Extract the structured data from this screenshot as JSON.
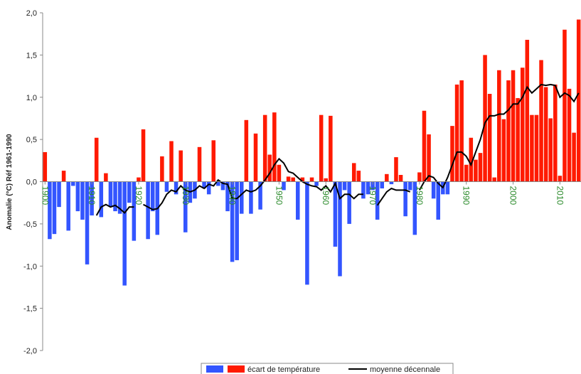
{
  "chart_data": {
    "type": "bar",
    "y_label": "Anomalie (°C) Réf 1961-1990",
    "x": [
      1900,
      1901,
      1902,
      1903,
      1904,
      1905,
      1906,
      1907,
      1908,
      1909,
      1910,
      1911,
      1912,
      1913,
      1914,
      1915,
      1916,
      1917,
      1918,
      1919,
      1920,
      1921,
      1922,
      1923,
      1924,
      1925,
      1926,
      1927,
      1928,
      1929,
      1930,
      1931,
      1932,
      1933,
      1934,
      1935,
      1936,
      1937,
      1938,
      1939,
      1940,
      1941,
      1942,
      1943,
      1944,
      1945,
      1946,
      1947,
      1948,
      1949,
      1950,
      1951,
      1952,
      1953,
      1954,
      1955,
      1956,
      1957,
      1958,
      1959,
      1960,
      1961,
      1962,
      1963,
      1964,
      1965,
      1966,
      1967,
      1968,
      1969,
      1970,
      1971,
      1972,
      1973,
      1974,
      1975,
      1976,
      1977,
      1978,
      1979,
      1980,
      1981,
      1982,
      1983,
      1984,
      1985,
      1986,
      1987,
      1988,
      1989,
      1990,
      1991,
      1992,
      1993,
      1994,
      1995,
      1996,
      1997,
      1998,
      1999,
      2000,
      2001,
      2002,
      2003,
      2004,
      2005,
      2006,
      2007,
      2008,
      2009,
      2010,
      2011,
      2012,
      2013,
      2014
    ],
    "series": [
      {
        "name": "écart de température",
        "color": "#ff1a00",
        "negative_color": "#3355ff",
        "values": [
          0.35,
          -0.68,
          -0.62,
          -0.3,
          0.13,
          -0.58,
          -0.05,
          -0.35,
          -0.45,
          -0.98,
          -0.4,
          0.52,
          -0.42,
          0.1,
          -0.3,
          -0.35,
          -0.38,
          -1.23,
          -0.25,
          -0.7,
          0.05,
          0.62,
          -0.68,
          -0.35,
          -0.63,
          0.3,
          -0.12,
          0.48,
          -0.15,
          0.37,
          -0.6,
          -0.25,
          -0.2,
          0.41,
          -0.08,
          -0.15,
          0.49,
          -0.05,
          -0.1,
          -0.35,
          -0.95,
          -0.93,
          -0.38,
          0.73,
          -0.38,
          0.57,
          -0.33,
          0.79,
          0.32,
          0.82,
          0.2,
          -0.1,
          0.06,
          0.05,
          -0.45,
          0.05,
          -1.22,
          0.05,
          -0.05,
          0.79,
          0.04,
          0.78,
          -0.77,
          -1.12,
          -0.1,
          -0.5,
          0.22,
          0.13,
          -0.2,
          -0.15,
          -0.1,
          -0.45,
          -0.08,
          0.09,
          -0.03,
          0.29,
          0.08,
          -0.41,
          -0.1,
          -0.63,
          0.11,
          0.84,
          0.56,
          -0.2,
          -0.45,
          -0.15,
          -0.15,
          0.66,
          1.15,
          1.2,
          0.2,
          0.52,
          0.26,
          0.34,
          1.5,
          1.04,
          0.05,
          1.32,
          0.74,
          1.2,
          1.32,
          0.99,
          1.35,
          1.68,
          0.79,
          0.79,
          1.44,
          1.12,
          0.75,
          1.15,
          0.07,
          1.8,
          1.1,
          0.58,
          1.92
        ]
      },
      {
        "name": "moyenne décennale",
        "type": "line",
        "color": "#000000",
        "values": [
          null,
          null,
          null,
          null,
          null,
          null,
          null,
          null,
          null,
          null,
          null,
          -0.4,
          -0.3,
          -0.27,
          -0.3,
          -0.28,
          -0.32,
          -0.37,
          -0.3,
          -0.3,
          null,
          -0.27,
          -0.3,
          -0.33,
          -0.32,
          -0.25,
          -0.15,
          -0.1,
          -0.12,
          -0.05,
          -0.1,
          -0.12,
          -0.1,
          -0.05,
          -0.08,
          -0.03,
          -0.05,
          0.02,
          -0.02,
          -0.03,
          -0.2,
          -0.2,
          -0.15,
          -0.1,
          -0.12,
          -0.1,
          -0.05,
          0.02,
          0.1,
          0.2,
          0.27,
          0.22,
          0.12,
          0.1,
          0.05,
          0.0,
          -0.03,
          -0.05,
          -0.06,
          -0.1,
          -0.05,
          -0.12,
          -0.02,
          -0.2,
          -0.15,
          -0.15,
          -0.2,
          -0.15,
          -0.15,
          null,
          null,
          -0.28,
          -0.2,
          -0.12,
          -0.08,
          -0.1,
          -0.1,
          -0.1,
          -0.12,
          null,
          -0.1,
          0.0,
          0.07,
          0.05,
          -0.02,
          -0.07,
          0.05,
          0.2,
          0.35,
          0.35,
          0.3,
          0.2,
          0.35,
          0.5,
          0.7,
          0.78,
          0.78,
          0.8,
          0.8,
          0.85,
          0.92,
          0.92,
          1.0,
          1.12,
          1.05,
          1.1,
          1.15,
          1.14,
          1.15,
          1.14,
          1.0,
          1.05,
          1.02,
          0.95,
          1.05
        ]
      }
    ],
    "xlim": [
      1899.5,
      2014.5
    ],
    "xticks": [
      1900,
      1910,
      1920,
      1930,
      1940,
      1950,
      1960,
      1970,
      1980,
      1990,
      2000,
      2010
    ],
    "ylim": [
      -2,
      2
    ],
    "yticks": [
      {
        "value": -2,
        "label": "-2,0"
      },
      {
        "value": -1.5,
        "label": "-1,5"
      },
      {
        "value": -1,
        "label": "-1,0"
      },
      {
        "value": -0.5,
        "label": "-0,5"
      },
      {
        "value": 0,
        "label": "0,0"
      },
      {
        "value": 0.5,
        "label": "0,5"
      },
      {
        "value": 1,
        "label": "1,0"
      },
      {
        "value": 1.5,
        "label": "1,5"
      },
      {
        "value": 2,
        "label": "2,0"
      }
    ],
    "tick_color": "#2a8a2a",
    "legend": "bottom"
  }
}
